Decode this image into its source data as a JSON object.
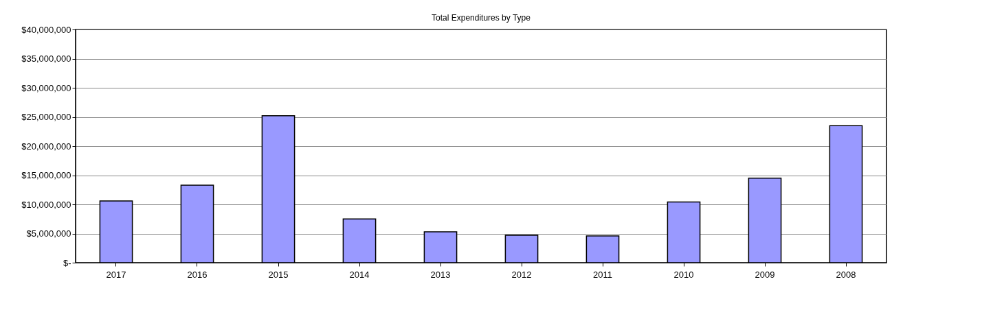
{
  "chart_data": {
    "type": "bar",
    "title": "Total Expenditures by Type",
    "categories": [
      "2017",
      "2016",
      "2015",
      "2014",
      "2013",
      "2012",
      "2011",
      "2010",
      "2009",
      "2008"
    ],
    "values": [
      10600000,
      13300000,
      25200000,
      7500000,
      5300000,
      4700000,
      4600000,
      10400000,
      14500000,
      23500000
    ],
    "color": "#9999ff",
    "ylim": [
      0,
      40000000
    ],
    "yticks": [
      {
        "value": 0,
        "label": "$-"
      },
      {
        "value": 5000000,
        "label": "$5,000,000"
      },
      {
        "value": 10000000,
        "label": "$10,000,000"
      },
      {
        "value": 15000000,
        "label": "$15,000,000"
      },
      {
        "value": 20000000,
        "label": "$20,000,000"
      },
      {
        "value": 25000000,
        "label": "$25,000,000"
      },
      {
        "value": 30000000,
        "label": "$30,000,000"
      },
      {
        "value": 35000000,
        "label": "$35,000,000"
      },
      {
        "value": 40000000,
        "label": "$40,000,000"
      }
    ],
    "grid": "y"
  }
}
